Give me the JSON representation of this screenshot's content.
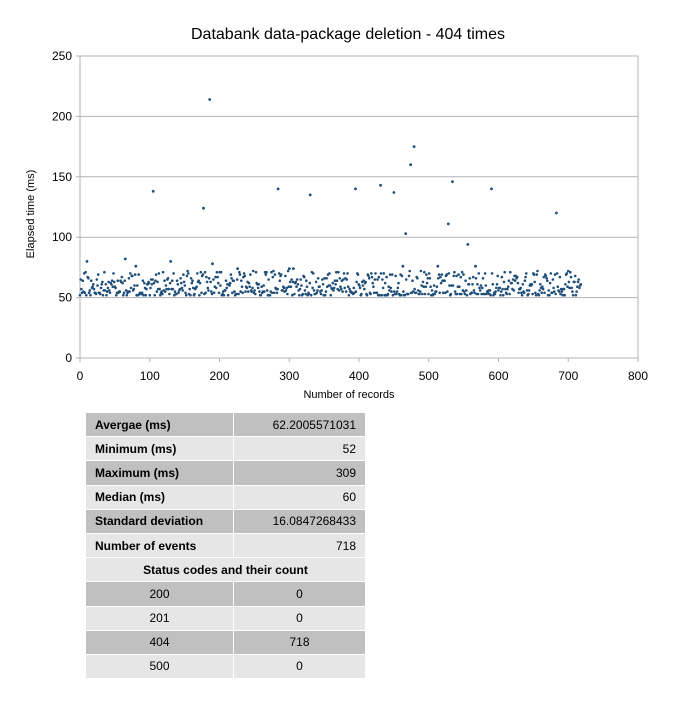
{
  "chart_data": {
    "type": "scatter",
    "title": "Databank data-package deletion - 404 times",
    "xlabel": "Number of records",
    "ylabel": "Elapsed time (ms)",
    "xlim": [
      0,
      800
    ],
    "ylim": [
      0,
      250
    ],
    "xticks": [
      "0",
      "100",
      "200",
      "300",
      "400",
      "500",
      "600",
      "700",
      "800"
    ],
    "yticks": [
      "0",
      "50",
      "100",
      "150",
      "200",
      "250"
    ],
    "grid": "horizontal",
    "legend": "none",
    "marker_color": "#1f4e79",
    "outliers": [
      {
        "x": 10,
        "y": 80
      },
      {
        "x": 65,
        "y": 82
      },
      {
        "x": 80,
        "y": 76
      },
      {
        "x": 105,
        "y": 138
      },
      {
        "x": 130,
        "y": 80
      },
      {
        "x": 177,
        "y": 124
      },
      {
        "x": 186,
        "y": 214
      },
      {
        "x": 190,
        "y": 78
      },
      {
        "x": 226,
        "y": 74
      },
      {
        "x": 284,
        "y": 140
      },
      {
        "x": 300,
        "y": 74
      },
      {
        "x": 306,
        "y": 74
      },
      {
        "x": 330,
        "y": 135
      },
      {
        "x": 395,
        "y": 140
      },
      {
        "x": 431,
        "y": 143
      },
      {
        "x": 450,
        "y": 137
      },
      {
        "x": 463,
        "y": 76
      },
      {
        "x": 467,
        "y": 103
      },
      {
        "x": 474,
        "y": 160
      },
      {
        "x": 479,
        "y": 175
      },
      {
        "x": 513,
        "y": 76
      },
      {
        "x": 528,
        "y": 111
      },
      {
        "x": 534,
        "y": 146
      },
      {
        "x": 556,
        "y": 94
      },
      {
        "x": 567,
        "y": 76
      },
      {
        "x": 590,
        "y": 140
      },
      {
        "x": 683,
        "y": 120
      }
    ],
    "bulk": {
      "count": 718,
      "x_range": [
        0,
        718
      ],
      "y_min": 52,
      "y_max": 72,
      "y_median": 60
    }
  },
  "stats": {
    "rows": [
      {
        "label": "Avergae (ms)",
        "value": "62.2005571031"
      },
      {
        "label": "Minimum (ms)",
        "value": "52"
      },
      {
        "label": "Maximum (ms)",
        "value": "309"
      },
      {
        "label": "Median (ms)",
        "value": "60"
      },
      {
        "label": "Standard deviation",
        "value": "16.0847268433"
      },
      {
        "label": "Number of events",
        "value": "718"
      }
    ],
    "status_header": "Status codes and their count",
    "status_codes": [
      {
        "code": "200",
        "count": "0"
      },
      {
        "code": "201",
        "count": "0"
      },
      {
        "code": "404",
        "count": "718"
      },
      {
        "code": "500",
        "count": "0"
      }
    ]
  }
}
